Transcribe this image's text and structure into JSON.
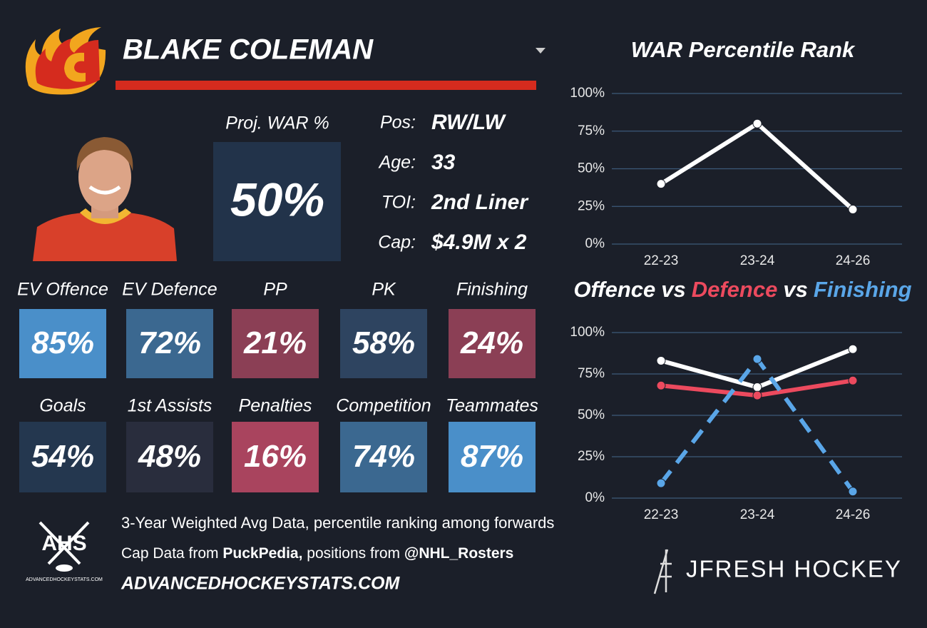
{
  "header": {
    "name": "BLAKE COLEMAN"
  },
  "projection": {
    "label": "Proj. WAR %",
    "value": "50%"
  },
  "bio": [
    {
      "label": "Pos:",
      "value": "RW/LW"
    },
    {
      "label": "Age:",
      "value": "33"
    },
    {
      "label": "TOI:",
      "value": "2nd Liner"
    },
    {
      "label": "Cap:",
      "value": "$4.9M x 2"
    }
  ],
  "tiles": [
    {
      "label": "EV Offence",
      "value": "85%",
      "color": "#4a8fc9"
    },
    {
      "label": "EV Defence",
      "value": "72%",
      "color": "#3b6890"
    },
    {
      "label": "PP",
      "value": "21%",
      "color": "#8b3f55"
    },
    {
      "label": "PK",
      "value": "58%",
      "color": "#2e4460"
    },
    {
      "label": "Finishing",
      "value": "24%",
      "color": "#8b3f55"
    },
    {
      "label": "Goals",
      "value": "54%",
      "color": "#24374f"
    },
    {
      "label": "1st Assists",
      "value": "48%",
      "color": "#292d3d"
    },
    {
      "label": "Penalties",
      "value": "16%",
      "color": "#a9445e"
    },
    {
      "label": "Competition",
      "value": "74%",
      "color": "#3b6890"
    },
    {
      "label": "Teammates",
      "value": "87%",
      "color": "#4a8fc9"
    }
  ],
  "footer": {
    "logo": "AHS",
    "logo_caption": "ADVANCEDHOCKEYSTATS.COM",
    "line1": "3-Year Weighted Avg Data, percentile ranking among forwards",
    "line2": [
      "Cap Data from ",
      "PuckPedia,",
      " positions from ",
      "@NHL_Rosters"
    ],
    "site": "ADVANCEDHOCKEYSTATS.COM",
    "brand": "JFRESH HOCKEY"
  },
  "chart_data": [
    {
      "type": "line",
      "title": "WAR Percentile Rank",
      "categories": [
        "22-23",
        "23-24",
        "24-26"
      ],
      "series": [
        {
          "color": "#ffffff",
          "values": [
            40,
            80,
            23
          ]
        }
      ],
      "ylim": [
        0,
        100
      ],
      "yticks": [
        {
          "value": 0,
          "label": "0%"
        },
        {
          "value": 25,
          "label": "25%"
        },
        {
          "value": 50,
          "label": "50%"
        },
        {
          "value": 75,
          "label": "75%"
        },
        {
          "value": 100,
          "label": "100%"
        }
      ],
      "grid": true
    },
    {
      "type": "line",
      "title_separator": "vs",
      "categories": [
        "22-23",
        "23-24",
        "24-26"
      ],
      "series": [
        {
          "name": "Offence",
          "color": "#ffffff",
          "values": [
            83,
            67,
            90
          ]
        },
        {
          "name": "Defence",
          "color": "#ec4a5e",
          "values": [
            68,
            62,
            71
          ]
        },
        {
          "name": "Finishing",
          "color": "#5aa6e8",
          "values": [
            9,
            84,
            4
          ],
          "dashed": true
        }
      ],
      "ylim": [
        0,
        100
      ],
      "yticks": [
        {
          "value": 0,
          "label": "0%"
        },
        {
          "value": 25,
          "label": "25%"
        },
        {
          "value": 50,
          "label": "50%"
        },
        {
          "value": 75,
          "label": "75%"
        },
        {
          "value": 100,
          "label": "100%"
        }
      ],
      "grid": true
    }
  ]
}
